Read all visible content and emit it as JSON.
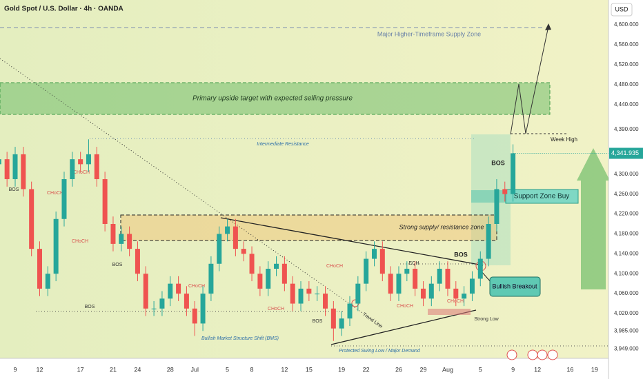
{
  "chart_data": {
    "type": "candlestick",
    "title": "Gold Spot / U.S. Dollar · 4h · OANDA",
    "currency": "USD",
    "x": [
      -2,
      -1,
      0,
      1,
      2,
      3,
      4,
      5,
      6,
      7,
      8,
      9,
      10,
      11,
      12,
      13,
      14,
      15,
      16,
      17,
      18,
      19,
      20,
      21,
      22,
      23,
      24,
      25,
      26,
      27,
      28,
      29,
      30,
      31,
      32,
      33,
      34,
      35,
      36,
      37,
      38,
      39,
      40,
      41,
      42,
      43,
      44,
      45,
      46,
      47,
      48,
      49,
      50,
      51,
      52,
      53,
      54,
      55,
      56,
      57,
      58,
      59,
      60,
      61
    ],
    "open": [
      4320,
      4330,
      4290,
      4340,
      4270,
      4150,
      4070,
      4100,
      4210,
      4290,
      4330,
      4320,
      4340,
      4290,
      4200,
      4160,
      4180,
      4150,
      4100,
      4030,
      4030,
      4050,
      4080,
      4060,
      4030,
      4000,
      4060,
      4120,
      4180,
      4195,
      4150,
      4140,
      4100,
      4070,
      4110,
      4120,
      4080,
      4040,
      4070,
      4060,
      4060,
      4030,
      3990,
      4010,
      4040,
      4080,
      4130,
      4150,
      4100,
      4060,
      4100,
      4110,
      4070,
      4050,
      4080,
      4110,
      4070,
      4050,
      4060,
      4090,
      4130,
      4200,
      4270,
      4260
    ],
    "high": [
      4345,
      4345,
      4355,
      4355,
      4285,
      4165,
      4115,
      4225,
      4305,
      4345,
      4345,
      4370,
      4355,
      4305,
      4215,
      4195,
      4195,
      4165,
      4115,
      4045,
      4065,
      4095,
      4095,
      4075,
      4045,
      4075,
      4135,
      4195,
      4210,
      4210,
      4165,
      4155,
      4115,
      4125,
      4135,
      4135,
      4095,
      4085,
      4085,
      4075,
      4075,
      4045,
      4025,
      4055,
      4095,
      4145,
      4165,
      4165,
      4115,
      4115,
      4125,
      4125,
      4085,
      4095,
      4125,
      4125,
      4085,
      4075,
      4105,
      4145,
      4215,
      4290,
      4285,
      4360
    ],
    "low": [
      4305,
      4275,
      4275,
      4255,
      4135,
      4055,
      4055,
      4085,
      4195,
      4275,
      4305,
      4305,
      4275,
      4185,
      4145,
      4145,
      4135,
      4085,
      4015,
      4015,
      4015,
      4035,
      4045,
      4015,
      3975,
      3985,
      4045,
      4105,
      4165,
      4135,
      4125,
      4085,
      4055,
      4055,
      4095,
      4065,
      4025,
      4025,
      4045,
      4045,
      4015,
      3965,
      3975,
      3995,
      4025,
      4065,
      4115,
      4085,
      4045,
      4045,
      4085,
      4055,
      4035,
      4035,
      4065,
      4055,
      4035,
      4035,
      4045,
      4075,
      4115,
      4185,
      4245,
      4245
    ],
    "close": [
      4330,
      4290,
      4340,
      4270,
      4150,
      4070,
      4100,
      4210,
      4290,
      4330,
      4320,
      4340,
      4290,
      4200,
      4160,
      4180,
      4150,
      4100,
      4030,
      4030,
      4050,
      4080,
      4060,
      4030,
      4000,
      4060,
      4120,
      4180,
      4195,
      4150,
      4140,
      4100,
      4070,
      4110,
      4120,
      4080,
      4040,
      4070,
      4060,
      4060,
      4030,
      3990,
      4010,
      4040,
      4080,
      4130,
      4150,
      4100,
      4060,
      4100,
      4110,
      4070,
      4050,
      4080,
      4110,
      4070,
      4050,
      4060,
      4090,
      4130,
      4200,
      4270,
      4260,
      4342
    ],
    "up_color": "#26a69a",
    "down_color": "#ef5350",
    "last_price": {
      "value": 4341.935,
      "label": "4,341.935"
    },
    "xlim": [
      -1.86,
      72.7
    ],
    "xticks": [
      {
        "value": 0,
        "label": "9"
      },
      {
        "value": 3,
        "label": "12"
      },
      {
        "value": 8,
        "label": "17"
      },
      {
        "value": 12,
        "label": "21"
      },
      {
        "value": 15,
        "label": "24"
      },
      {
        "value": 19,
        "label": "28"
      },
      {
        "value": 22,
        "label": "Jul"
      },
      {
        "value": 26,
        "label": "5"
      },
      {
        "value": 29,
        "label": "8"
      },
      {
        "value": 33,
        "label": "12"
      },
      {
        "value": 36,
        "label": "15"
      },
      {
        "value": 40,
        "label": "19"
      },
      {
        "value": 43,
        "label": "22"
      },
      {
        "value": 47,
        "label": "26"
      },
      {
        "value": 50,
        "label": "29"
      },
      {
        "value": 53,
        "label": "Aug"
      },
      {
        "value": 57,
        "label": "5"
      },
      {
        "value": 61,
        "label": "9"
      },
      {
        "value": 64,
        "label": "12"
      },
      {
        "value": 68,
        "label": "16"
      },
      {
        "value": 71,
        "label": "19"
      }
    ],
    "ylim": [
      3930,
      4650
    ],
    "yticks": [
      {
        "value": 4600,
        "label": "4,600.000"
      },
      {
        "value": 4560,
        "label": "4,560.000"
      },
      {
        "value": 4520,
        "label": "4,520.000"
      },
      {
        "value": 4480,
        "label": "4,480.000"
      },
      {
        "value": 4440,
        "label": "4,440.000"
      },
      {
        "value": 4390,
        "label": "4,390.000"
      },
      {
        "value": 4300,
        "label": "4,300.000"
      },
      {
        "value": 4260,
        "label": "4,260.000"
      },
      {
        "value": 4220,
        "label": "4,220.000"
      },
      {
        "value": 4180,
        "label": "4,180.000"
      },
      {
        "value": 4140,
        "label": "4,140.000"
      },
      {
        "value": 4100,
        "label": "4,100.000"
      },
      {
        "value": 4060,
        "label": "4,060.000"
      },
      {
        "value": 4020,
        "label": "4,020.000"
      },
      {
        "value": 3985,
        "label": "3,985.000"
      },
      {
        "value": 3949,
        "label": "3,949.000"
      }
    ],
    "grid": false
  },
  "drawings": {
    "supply_zone": "Major Higher-Timeframe Supply Zone",
    "primary_target": "Primary upside target with expected selling pressure",
    "intermediate_resistance": "Intermediate Resistance",
    "week_high": "Week High",
    "strong_supply": "Strong supply/ resistance zone",
    "support_zone": "Support Zone Buy",
    "bullish_breakout": "Bullish Breakout"
  },
  "annotations": [
    "BOS",
    "CHoCH",
    "CHoCH",
    "CHoCH",
    "BOS",
    "BOS",
    "CHoCH",
    "CHoCH",
    "CHoCH",
    "BOS",
    "CHoCH",
    "CHoCH",
    "EQH",
    "BOS",
    "BOS",
    "Strong Low",
    "Trend Line",
    "Bullish Market Structure Shift (BMS)",
    "Protected Swing Low / Major Demand"
  ]
}
